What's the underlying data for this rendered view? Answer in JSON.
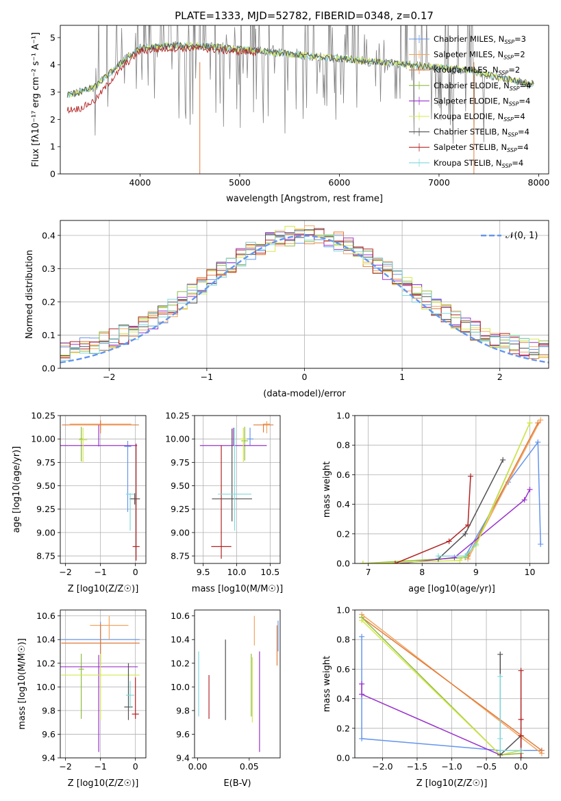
{
  "figure_title": "PLATE=1333, MJD=52782, FIBERID=0348, z=0.17",
  "legend_models": [
    {
      "name": "Chabrier MILES, N",
      "sub": "SSP",
      "suffix": "=3",
      "color": "#6495ed"
    },
    {
      "name": "Salpeter MILES, N",
      "sub": "SSP",
      "suffix": "=2",
      "color": "#f4a460"
    },
    {
      "name": "Kroupa MILES, N",
      "sub": "SSP",
      "suffix": "=2",
      "color": "#e07b39"
    },
    {
      "name": "Chabrier ELODIE, N",
      "sub": "SSP",
      "suffix": "=4",
      "color": "#8fbc3f"
    },
    {
      "name": "Salpeter ELODIE, N",
      "sub": "SSP",
      "suffix": "=4",
      "color": "#9932cc"
    },
    {
      "name": "Kroupa ELODIE, N",
      "sub": "SSP",
      "suffix": "=4",
      "color": "#d4e84a"
    },
    {
      "name": "Chabrier STELIB, N",
      "sub": "SSP",
      "suffix": "=4",
      "color": "#505050"
    },
    {
      "name": "Salpeter STELIB, N",
      "sub": "SSP",
      "suffix": "=4",
      "color": "#b22222"
    },
    {
      "name": "Kroupa STELIB, N",
      "sub": "SSP",
      "suffix": "=4",
      "color": "#7fd8dc"
    }
  ],
  "chart_data": [
    {
      "id": "spectrum",
      "type": "line",
      "xlabel": "wavelength [Angstrom, rest frame]",
      "ylabel": "Flux [f_λ 10^-17 erg cm^-2 s^-1 A^-1]",
      "xlim": [
        3200,
        8100
      ],
      "ylim": [
        0,
        5.45
      ],
      "xticks": [
        4000,
        5000,
        6000,
        7000,
        8000
      ],
      "yticks": [
        0,
        1,
        2,
        3,
        4,
        5
      ],
      "grid": false,
      "legend": "right",
      "data_color": "#808080",
      "continuum": {
        "x": [
          3270,
          3400,
          3550,
          3700,
          3850,
          4000,
          4300,
          4600,
          4900,
          5200,
          5500,
          5800,
          6100,
          6400,
          6700,
          7000,
          7300,
          7600,
          7900
        ],
        "y": [
          2.9,
          3.0,
          3.2,
          3.7,
          4.2,
          4.6,
          4.7,
          4.7,
          4.6,
          4.5,
          4.4,
          4.3,
          4.2,
          4.1,
          4.0,
          3.9,
          3.8,
          3.55,
          3.3
        ]
      },
      "red_continuum": {
        "x": [
          3270,
          3400,
          3550,
          3700,
          3850,
          4000,
          4300,
          4600,
          4900,
          5200
        ],
        "y": [
          2.35,
          2.4,
          2.7,
          3.4,
          4.0,
          4.5,
          4.6,
          4.6,
          4.5,
          4.45
        ]
      }
    },
    {
      "id": "residuals",
      "type": "step",
      "xlabel": "(data-model)/error",
      "ylabel": "Normed distribution",
      "xlim": [
        -2.5,
        2.5
      ],
      "ylim": [
        0,
        0.445
      ],
      "xticks": [
        -2,
        -1,
        0,
        1,
        2
      ],
      "yticks": [
        0.0,
        0.1,
        0.2,
        0.3,
        0.4
      ],
      "grid": true,
      "legend": "top-right",
      "gaussian_label": "𝒩(0, 1)",
      "gaussian_color": "#6495ed",
      "bin_edges": [
        -2.5,
        -2.4,
        -2.3,
        -2.2,
        -2.1,
        -2.0,
        -1.9,
        -1.8,
        -1.7,
        -1.6,
        -1.5,
        -1.4,
        -1.3,
        -1.2,
        -1.1,
        -1.0,
        -0.9,
        -0.8,
        -0.7,
        -0.6,
        -0.5,
        -0.4,
        -0.3,
        -0.2,
        -0.1,
        0.0,
        0.1,
        0.2,
        0.3,
        0.4,
        0.5,
        0.6,
        0.7,
        0.8,
        0.9,
        1.0,
        1.1,
        1.2,
        1.3,
        1.4,
        1.5,
        1.6,
        1.7,
        1.8,
        1.9,
        2.0,
        2.1,
        2.2,
        2.3,
        2.4,
        2.5
      ]
    },
    {
      "id": "age-vs-Z",
      "type": "errorbar",
      "xlabel": "Z [log10(Z/Z☉)]",
      "ylabel": "age [log10(age/yr)]",
      "xlim": [
        -2.15,
        0.3
      ],
      "ylim": [
        8.67,
        10.25
      ],
      "xticks": [
        -2,
        -1,
        0
      ],
      "yticks": [
        8.75,
        9.0,
        9.25,
        9.5,
        9.75,
        10.0,
        10.25
      ],
      "grid": true,
      "points": [
        {
          "model": 0,
          "x": -0.22,
          "xerr": 0.1,
          "y": 9.92,
          "ylo": 9.22,
          "yhi": 9.98
        },
        {
          "model": 1,
          "x": -1.0,
          "xerr": 0.88,
          "y": 10.16,
          "ylo": 10.1,
          "yhi": 10.19
        },
        {
          "model": 2,
          "x": -1.0,
          "xerr": 1.1,
          "y": 10.15,
          "ylo": 10.06,
          "yhi": 10.2
        },
        {
          "model": 3,
          "x": -1.55,
          "xerr": 0.05,
          "y": 10.0,
          "ylo": 9.76,
          "yhi": 10.13
        },
        {
          "model": 4,
          "x": -1.05,
          "xerr": 1.1,
          "y": 9.93,
          "ylo": 9.92,
          "yhi": 10.15
        },
        {
          "model": 5,
          "x": -1.5,
          "xerr": 0.12,
          "y": 9.99,
          "ylo": 9.75,
          "yhi": 10.12
        },
        {
          "model": 6,
          "x": -0.02,
          "xerr": 0.15,
          "y": 9.36,
          "ylo": 9.3,
          "yhi": 9.42
        },
        {
          "model": 7,
          "x": 0.02,
          "xerr": 0.1,
          "y": 8.85,
          "ylo": 8.7,
          "yhi": 9.95
        },
        {
          "model": 8,
          "x": -0.15,
          "xerr": 0.12,
          "y": 9.41,
          "ylo": 9.02,
          "yhi": 9.42
        }
      ]
    },
    {
      "id": "age-vs-mass",
      "type": "errorbar",
      "xlabel": "mass [log10(M/M☉)]",
      "ylabel": "",
      "xlim": [
        9.37,
        10.65
      ],
      "ylim": [
        8.67,
        10.25
      ],
      "xticks": [
        9.5,
        10.0,
        10.5
      ],
      "yticks": [
        8.75,
        9.0,
        9.25,
        9.5,
        9.75,
        10.0,
        10.25
      ],
      "grid": true,
      "points": [
        {
          "model": 0,
          "x": 10.2,
          "xerr": 0.05,
          "y": 10.0,
          "ylo": 9.93,
          "yhi": 10.12
        },
        {
          "model": 1,
          "x": 10.45,
          "xerr": 0.05,
          "y": 10.16,
          "ylo": 10.06,
          "yhi": 10.19
        },
        {
          "model": 2,
          "x": 10.4,
          "xerr": 0.15,
          "y": 10.15,
          "ylo": 10.07,
          "yhi": 10.16
        },
        {
          "model": 3,
          "x": 10.12,
          "xerr": 0.05,
          "y": 9.98,
          "ylo": 9.77,
          "yhi": 10.13
        },
        {
          "model": 4,
          "x": 9.95,
          "xerr": 0.5,
          "y": 9.93,
          "ylo": 9.93,
          "yhi": 10.12
        },
        {
          "model": 5,
          "x": 10.1,
          "xerr": 0.05,
          "y": 10.0,
          "ylo": 9.75,
          "yhi": 10.12
        },
        {
          "model": 6,
          "x": 9.93,
          "xerr": 0.3,
          "y": 9.36,
          "ylo": 9.12,
          "yhi": 10.11
        },
        {
          "model": 7,
          "x": 9.77,
          "xerr": 0.15,
          "y": 8.85,
          "ylo": 8.72,
          "yhi": 9.93
        },
        {
          "model": 8,
          "x": 9.97,
          "xerr": 0.25,
          "y": 9.41,
          "ylo": 9.02,
          "yhi": 10.12
        }
      ]
    },
    {
      "id": "weight-vs-age",
      "type": "line",
      "xlabel": "age  [log10(age/yr)]",
      "ylabel": "mass weight",
      "xlim": [
        6.75,
        10.35
      ],
      "ylim": [
        0,
        1.0
      ],
      "xticks": [
        7,
        8,
        9,
        10
      ],
      "yticks": [
        0.0,
        0.2,
        0.4,
        0.6,
        0.8,
        1.0
      ],
      "grid": true,
      "series": [
        {
          "model": 0,
          "x": [
            8.8,
            9.6,
            10.15,
            10.2
          ],
          "y": [
            0.05,
            0.55,
            0.82,
            0.13
          ]
        },
        {
          "model": 1,
          "x": [
            8.85,
            10.2
          ],
          "y": [
            0.03,
            0.97
          ]
        },
        {
          "model": 2,
          "x": [
            8.85,
            10.15
          ],
          "y": [
            0.05,
            0.95
          ]
        },
        {
          "model": 3,
          "x": [
            6.9,
            8.8,
            9.0,
            10.0
          ],
          "y": [
            0.0,
            0.04,
            0.13,
            0.95
          ]
        },
        {
          "model": 4,
          "x": [
            7.6,
            8.6,
            9.9,
            10.0
          ],
          "y": [
            0.0,
            0.04,
            0.43,
            0.5
          ]
        },
        {
          "model": 5,
          "x": [
            6.9,
            8.7,
            9.0,
            10.0
          ],
          "y": [
            0.0,
            0.02,
            0.12,
            0.95
          ]
        },
        {
          "model": 6,
          "x": [
            8.3,
            8.8,
            9.5
          ],
          "y": [
            0.03,
            0.2,
            0.7
          ]
        },
        {
          "model": 7,
          "x": [
            7.5,
            8.5,
            8.85,
            8.9
          ],
          "y": [
            0.0,
            0.15,
            0.26,
            0.59
          ]
        },
        {
          "model": 8,
          "x": [
            8.3,
            8.8,
            9.0
          ],
          "y": [
            0.05,
            0.05,
            0.13
          ]
        }
      ]
    },
    {
      "id": "mass-vs-Z",
      "type": "errorbar",
      "xlabel": "Z [log10(Z/Z☉)]",
      "ylabel": "mass [log10(M/M☉)]",
      "xlim": [
        -2.15,
        0.3
      ],
      "ylim": [
        9.4,
        10.65
      ],
      "xticks": [
        -2,
        -1,
        0
      ],
      "yticks": [
        9.4,
        9.6,
        9.8,
        10.0,
        10.2,
        10.4,
        10.6
      ],
      "grid": true,
      "points": [
        {
          "model": 0,
          "x": -1.0,
          "xerr": 1.12,
          "y": 10.4,
          "ylo": 10.18,
          "yhi": 10.55
        },
        {
          "model": 1,
          "x": -0.75,
          "xerr": 0.55,
          "y": 10.52,
          "ylo": 10.4,
          "yhi": 10.6
        },
        {
          "model": 2,
          "x": -1.0,
          "xerr": 1.12,
          "y": 10.37,
          "ylo": 10.2,
          "yhi": 10.53
        },
        {
          "model": 3,
          "x": -1.55,
          "xerr": 0.08,
          "y": 10.15,
          "ylo": 9.73,
          "yhi": 10.28
        },
        {
          "model": 4,
          "x": -1.05,
          "xerr": 1.12,
          "y": 10.17,
          "ylo": 9.45,
          "yhi": 10.27
        },
        {
          "model": 5,
          "x": -1.0,
          "xerr": 1.12,
          "y": 10.1,
          "ylo": 9.72,
          "yhi": 10.28
        },
        {
          "model": 6,
          "x": -0.2,
          "xerr": 0.12,
          "y": 9.83,
          "ylo": 9.72,
          "yhi": 10.2
        },
        {
          "model": 7,
          "x": 0.0,
          "xerr": 0.1,
          "y": 9.77,
          "ylo": 9.73,
          "yhi": 10.08
        },
        {
          "model": 8,
          "x": -0.15,
          "xerr": 0.12,
          "y": 9.93,
          "ylo": 9.82,
          "yhi": 10.05
        }
      ]
    },
    {
      "id": "mass-vs-ebv",
      "type": "errorbar",
      "xlabel": "E(B-V)",
      "ylabel": "",
      "xlim": [
        -0.003,
        0.08
      ],
      "ylim": [
        9.4,
        10.65
      ],
      "xticks": [
        0.0,
        0.05
      ],
      "yticks": [
        9.4,
        9.6,
        9.8,
        10.0,
        10.2,
        10.4,
        10.6
      ],
      "grid": false,
      "points": [
        {
          "model": 0,
          "x": 0.078,
          "ylo": 10.3,
          "yhi": 10.56
        },
        {
          "model": 1,
          "x": 0.055,
          "ylo": 10.35,
          "yhi": 10.6
        },
        {
          "model": 2,
          "x": 0.077,
          "ylo": 10.18,
          "yhi": 10.52
        },
        {
          "model": 3,
          "x": 0.052,
          "ylo": 9.75,
          "yhi": 10.28
        },
        {
          "model": 4,
          "x": 0.06,
          "ylo": 9.45,
          "yhi": 10.3
        },
        {
          "model": 5,
          "x": 0.053,
          "ylo": 9.7,
          "yhi": 10.25
        },
        {
          "model": 6,
          "x": 0.027,
          "ylo": 9.72,
          "yhi": 10.4
        },
        {
          "model": 7,
          "x": 0.011,
          "ylo": 9.73,
          "yhi": 10.1
        },
        {
          "model": 8,
          "x": 0.001,
          "ylo": 9.75,
          "yhi": 10.3
        }
      ]
    },
    {
      "id": "weight-vs-Z",
      "type": "line",
      "xlabel": "Z [log10(Z/Z☉)]",
      "ylabel": "mass weight",
      "xlim": [
        -2.4,
        0.4
      ],
      "ylim": [
        0,
        1.0
      ],
      "xticks": [
        -2.0,
        -1.5,
        -1.0,
        -0.5,
        0.0
      ],
      "yticks": [
        0.0,
        0.2,
        0.4,
        0.6,
        0.8,
        1.0
      ],
      "grid": true,
      "series": [
        {
          "model": 0,
          "x": [
            -2.3,
            -2.3,
            -0.3,
            0.3
          ],
          "y": [
            0.82,
            0.13,
            0.05,
            0.05
          ]
        },
        {
          "model": 1,
          "x": [
            -2.3,
            0.3
          ],
          "y": [
            0.97,
            0.03
          ]
        },
        {
          "model": 2,
          "x": [
            -2.3,
            0.3
          ],
          "y": [
            0.95,
            0.05
          ]
        },
        {
          "model": 3,
          "x": [
            -2.3,
            -0.3,
            0.0
          ],
          "y": [
            0.95,
            0.02,
            0.03
          ]
        },
        {
          "model": 4,
          "x": [
            -2.3,
            -2.3,
            -0.3,
            0.0
          ],
          "y": [
            0.5,
            0.43,
            0.02,
            0.05
          ]
        },
        {
          "model": 5,
          "x": [
            -2.3,
            -0.3,
            0.0
          ],
          "y": [
            0.93,
            0.02,
            0.05
          ]
        },
        {
          "model": 6,
          "x": [
            -0.3,
            -0.3,
            0.0,
            0.0
          ],
          "y": [
            0.7,
            0.02,
            0.15,
            0.05
          ]
        },
        {
          "model": 7,
          "x": [
            0.0,
            0.0,
            0.0,
            0.0
          ],
          "y": [
            0.59,
            0.26,
            0.15,
            0.0
          ]
        },
        {
          "model": 8,
          "x": [
            -0.3,
            -0.3,
            -0.3,
            0.0
          ],
          "y": [
            0.55,
            0.13,
            0.05,
            0.05
          ]
        }
      ]
    }
  ]
}
